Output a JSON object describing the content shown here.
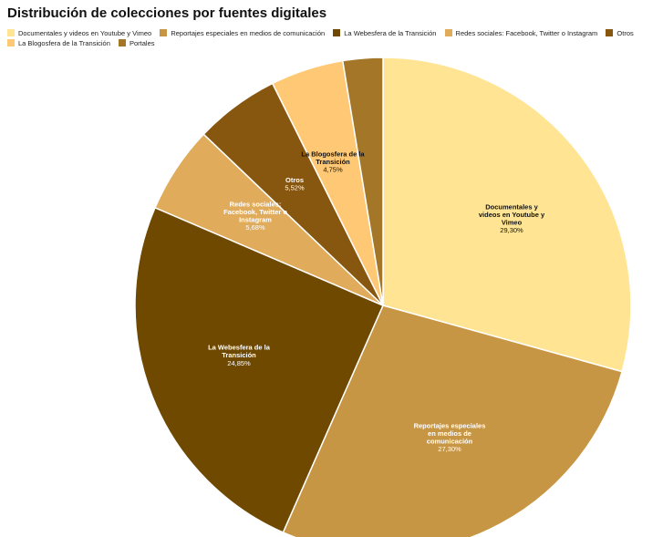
{
  "chart_data": {
    "type": "pie",
    "title": "Distribución de colecciones por fuentes digitales",
    "legend_position": "top",
    "slices": [
      {
        "label": "Documentales y videos en Youtube y Vimeo",
        "value": 29.3,
        "value_label": "29,30%",
        "color": "#FFE593",
        "text_color": "#111111",
        "label_lines": [
          "Documentales y",
          "videos en Youtube y",
          "Vimeo"
        ]
      },
      {
        "label": "Reportajes especiales en medios de comunicación",
        "value": 27.3,
        "value_label": "27,30%",
        "color": "#C79644",
        "text_color": "#ffffff",
        "label_lines": [
          "Reportajes especiales",
          "en medios de",
          "comunicación"
        ]
      },
      {
        "label": "La Webesfera de la Transición",
        "value": 24.85,
        "value_label": "24,85%",
        "color": "#704900",
        "text_color": "#ffffff",
        "label_lines": [
          "La Webesfera de la",
          "Transición"
        ]
      },
      {
        "label": "Redes sociales: Facebook, Twitter o Instagram",
        "value": 5.68,
        "value_label": "5,68%",
        "color": "#E0AC5B",
        "text_color": "#ffffff",
        "label_lines": [
          "Redes sociales:",
          "Facebook, Twitter o",
          "Instagram"
        ]
      },
      {
        "label": "Otros",
        "value": 5.52,
        "value_label": "5,52%",
        "color": "#87570F",
        "text_color": "#ffffff",
        "label_lines": [
          "Otros"
        ]
      },
      {
        "label": "La Blogosfera de la Transición",
        "value": 4.75,
        "value_label": "4,75%",
        "color": "#FFC875",
        "text_color": "#111111",
        "label_lines": [
          "La Blogosfera de la",
          "Transición"
        ]
      },
      {
        "label": "Portales",
        "value": 2.6,
        "value_label": "",
        "color": "#A47628",
        "text_color": "#ffffff",
        "label_lines": []
      }
    ]
  }
}
